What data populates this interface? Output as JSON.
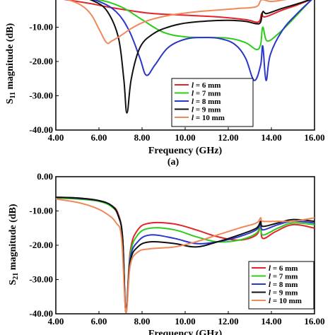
{
  "chart_data": [
    {
      "type": "line",
      "panel_label": "(a)",
      "xlabel": "Frequency (GHz)",
      "ylabel_main": "S",
      "ylabel_sub": "11",
      "ylabel_rest": " magnitude (dB)",
      "xlim": [
        4,
        16
      ],
      "ylim": [
        -40,
        0
      ],
      "xticks": [
        "4.00",
        "6.00",
        "8.00",
        "10.00",
        "12.00",
        "14.00",
        "16.00"
      ],
      "yticks": [
        "-10.00",
        "-20.00",
        "-30.00",
        "-40.00"
      ],
      "legend_position": "bottom-right",
      "series": [
        {
          "name": "l = 6 mm",
          "legend_italic": "l",
          "legend_rest": " = 6 mm",
          "color": "#e3242b",
          "points": [
            [
              4,
              -1.5
            ],
            [
              5.5,
              -3
            ],
            [
              6.5,
              -4.2
            ],
            [
              7.5,
              -5.2
            ],
            [
              8.5,
              -6
            ],
            [
              10,
              -6.5
            ],
            [
              11.5,
              -7
            ],
            [
              12.8,
              -7.8
            ],
            [
              13.4,
              -8.5
            ],
            [
              13.55,
              -6
            ],
            [
              13.7,
              -7
            ],
            [
              14.5,
              -5
            ],
            [
              15.2,
              -3.5
            ],
            [
              16,
              -1.5
            ]
          ]
        },
        {
          "name": "l = 7 mm",
          "legend_italic": "l",
          "legend_rest": " = 7 mm",
          "color": "#2ecc1a",
          "points": [
            [
              4,
              -0.5
            ],
            [
              5,
              -1.2
            ],
            [
              5.8,
              -1.8
            ],
            [
              6.5,
              -2.8
            ],
            [
              7.2,
              -4.6
            ],
            [
              8,
              -7.8
            ],
            [
              9,
              -11.5
            ],
            [
              10,
              -12.8
            ],
            [
              11,
              -13
            ],
            [
              12,
              -13.2
            ],
            [
              12.8,
              -14.5
            ],
            [
              13.3,
              -16.5
            ],
            [
              13.5,
              -15
            ],
            [
              13.6,
              -10
            ],
            [
              13.8,
              -14
            ],
            [
              14.3,
              -12
            ],
            [
              14.8,
              -9
            ],
            [
              15.4,
              -5
            ],
            [
              16,
              -1
            ]
          ]
        },
        {
          "name": "l = 8 mm",
          "legend_italic": "l",
          "legend_rest": " = 8 mm",
          "color": "#2a37c8",
          "points": [
            [
              4,
              -0.5
            ],
            [
              5,
              -1
            ],
            [
              6,
              -2.5
            ],
            [
              6.8,
              -5.5
            ],
            [
              7.4,
              -11
            ],
            [
              7.9,
              -19
            ],
            [
              8.2,
              -24
            ],
            [
              8.6,
              -21
            ],
            [
              9.2,
              -16
            ],
            [
              10,
              -13.5
            ],
            [
              10.8,
              -13
            ],
            [
              11.6,
              -13.3
            ],
            [
              12.3,
              -15
            ],
            [
              12.8,
              -19
            ],
            [
              13.2,
              -25.5
            ],
            [
              13.5,
              -21
            ],
            [
              13.6,
              -15.5
            ],
            [
              13.75,
              -25.5
            ],
            [
              13.95,
              -18
            ],
            [
              14.5,
              -11
            ],
            [
              15.2,
              -6
            ],
            [
              16,
              -1.2
            ]
          ]
        },
        {
          "name": "l = 9 mm",
          "legend_italic": "l",
          "legend_rest": " = 9 mm",
          "color": "#111111",
          "points": [
            [
              4,
              -0.3
            ],
            [
              5,
              -1
            ],
            [
              5.8,
              -2.5
            ],
            [
              6.4,
              -5.5
            ],
            [
              6.9,
              -13
            ],
            [
              7.15,
              -25
            ],
            [
              7.3,
              -35
            ],
            [
              7.5,
              -25
            ],
            [
              7.9,
              -16
            ],
            [
              8.5,
              -12
            ],
            [
              9.2,
              -10
            ],
            [
              10,
              -8.8
            ],
            [
              11,
              -8.2
            ],
            [
              12,
              -8
            ],
            [
              12.8,
              -8.3
            ],
            [
              13.3,
              -9
            ],
            [
              13.5,
              -8.5
            ],
            [
              13.6,
              -5.5
            ],
            [
              13.8,
              -6
            ],
            [
              14.5,
              -4.5
            ],
            [
              15.3,
              -3
            ],
            [
              16,
              -1.5
            ]
          ]
        },
        {
          "name": "l = 10 mm",
          "legend_italic": "l",
          "legend_rest": " = 10 mm",
          "color": "#f0895a",
          "points": [
            [
              4,
              -1
            ],
            [
              5,
              -3
            ],
            [
              5.6,
              -6
            ],
            [
              6,
              -10.5
            ],
            [
              6.35,
              -14.5
            ],
            [
              6.6,
              -14
            ],
            [
              7,
              -12.5
            ],
            [
              7.6,
              -10
            ],
            [
              8.3,
              -8
            ],
            [
              9.3,
              -6.5
            ],
            [
              10.5,
              -5.5
            ],
            [
              11.5,
              -5
            ],
            [
              12.5,
              -4.5
            ],
            [
              13.3,
              -4
            ],
            [
              13.55,
              -2
            ],
            [
              14,
              -2.5
            ],
            [
              14.8,
              -1.8
            ],
            [
              16,
              -0.8
            ]
          ]
        }
      ]
    },
    {
      "type": "line",
      "xlabel": "Frequency (GHz)",
      "ylabel_main": "S",
      "ylabel_sub": "21",
      "ylabel_rest": " magnitude (dB)",
      "xlim": [
        4,
        16
      ],
      "ylim": [
        -40,
        0
      ],
      "xticks": [
        "4.00",
        "6.00",
        "8.00",
        "10.00",
        "12.00",
        "14.00",
        "16.00"
      ],
      "yticks": [
        "0.00",
        "-10.00",
        "-20.00",
        "-30.00",
        "-40.00"
      ],
      "legend_position": "bottom-right",
      "series": [
        {
          "name": "l = 6 mm",
          "legend_italic": "l",
          "legend_rest": " = 6 mm",
          "color": "#e3242b",
          "points": [
            [
              4,
              -6
            ],
            [
              5,
              -6.2
            ],
            [
              6,
              -7
            ],
            [
              6.6,
              -8.5
            ],
            [
              6.9,
              -11
            ],
            [
              7.1,
              -18
            ],
            [
              7.25,
              -39.5
            ],
            [
              7.45,
              -22
            ],
            [
              7.8,
              -15.5
            ],
            [
              8.4,
              -13.5
            ],
            [
              9.5,
              -13.8
            ],
            [
              10.5,
              -15.5
            ],
            [
              11.5,
              -17.5
            ],
            [
              12.5,
              -18.5
            ],
            [
              13.3,
              -17
            ],
            [
              13.5,
              -14
            ],
            [
              13.6,
              -18
            ],
            [
              14.2,
              -16
            ],
            [
              15,
              -14
            ],
            [
              16,
              -15
            ]
          ]
        },
        {
          "name": "l = 7 mm",
          "legend_italic": "l",
          "legend_rest": " = 7 mm",
          "color": "#2ecc1a",
          "points": [
            [
              4,
              -6.2
            ],
            [
              5,
              -6.5
            ],
            [
              6,
              -7.2
            ],
            [
              6.6,
              -8.8
            ],
            [
              6.9,
              -11.5
            ],
            [
              7.1,
              -18
            ],
            [
              7.25,
              -39.5
            ],
            [
              7.45,
              -23
            ],
            [
              7.8,
              -17
            ],
            [
              8.4,
              -15
            ],
            [
              9.5,
              -15.5
            ],
            [
              10.5,
              -17.5
            ],
            [
              11.5,
              -19
            ],
            [
              12.5,
              -18.5
            ],
            [
              13.3,
              -16.5
            ],
            [
              13.5,
              -14
            ],
            [
              13.6,
              -17
            ],
            [
              14.3,
              -15
            ],
            [
              15,
              -13.5
            ],
            [
              16,
              -14
            ]
          ]
        },
        {
          "name": "l = 8 mm",
          "legend_italic": "l",
          "legend_rest": " = 8 mm",
          "color": "#2a37c8",
          "points": [
            [
              4,
              -6
            ],
            [
              5,
              -6.3
            ],
            [
              6,
              -7
            ],
            [
              6.6,
              -8.5
            ],
            [
              6.9,
              -11.5
            ],
            [
              7.1,
              -18
            ],
            [
              7.25,
              -39.5
            ],
            [
              7.45,
              -24
            ],
            [
              7.8,
              -19
            ],
            [
              8.4,
              -17
            ],
            [
              9.5,
              -18
            ],
            [
              10.5,
              -19.5
            ],
            [
              11.5,
              -19
            ],
            [
              12.5,
              -17.5
            ],
            [
              13.3,
              -15.5
            ],
            [
              13.5,
              -13.5
            ],
            [
              13.6,
              -15.5
            ],
            [
              14.3,
              -14
            ],
            [
              15,
              -13
            ],
            [
              16,
              -13.5
            ]
          ]
        },
        {
          "name": "l = 9 mm",
          "legend_italic": "l",
          "legend_rest": " = 9 mm",
          "color": "#111111",
          "points": [
            [
              4,
              -6
            ],
            [
              5,
              -6.2
            ],
            [
              6,
              -7
            ],
            [
              6.6,
              -8.5
            ],
            [
              6.9,
              -11.5
            ],
            [
              7.1,
              -18
            ],
            [
              7.25,
              -39.5
            ],
            [
              7.45,
              -25
            ],
            [
              7.8,
              -20.5
            ],
            [
              8.4,
              -19
            ],
            [
              9.5,
              -19.5
            ],
            [
              10.5,
              -20.5
            ],
            [
              11.5,
              -19
            ],
            [
              12.5,
              -17
            ],
            [
              13.3,
              -15
            ],
            [
              13.5,
              -13
            ],
            [
              13.6,
              -14.5
            ],
            [
              14.3,
              -13.5
            ],
            [
              15,
              -12.5
            ],
            [
              16,
              -13
            ]
          ]
        },
        {
          "name": "l = 10 mm",
          "legend_italic": "l",
          "legend_rest": " = 10 mm",
          "color": "#f0895a",
          "points": [
            [
              4,
              -6.5
            ],
            [
              5,
              -7.5
            ],
            [
              5.8,
              -9
            ],
            [
              6.4,
              -11
            ],
            [
              6.8,
              -13.5
            ],
            [
              7.05,
              -18
            ],
            [
              7.25,
              -39.5
            ],
            [
              7.45,
              -26
            ],
            [
              7.8,
              -22
            ],
            [
              8.4,
              -21
            ],
            [
              9.5,
              -20.5
            ],
            [
              10.5,
              -19
            ],
            [
              11.5,
              -17
            ],
            [
              12.5,
              -15
            ],
            [
              13.3,
              -13.5
            ],
            [
              13.5,
              -12
            ],
            [
              13.6,
              -13
            ],
            [
              14.3,
              -13
            ],
            [
              15,
              -13
            ],
            [
              16,
              -12
            ]
          ]
        }
      ]
    }
  ]
}
